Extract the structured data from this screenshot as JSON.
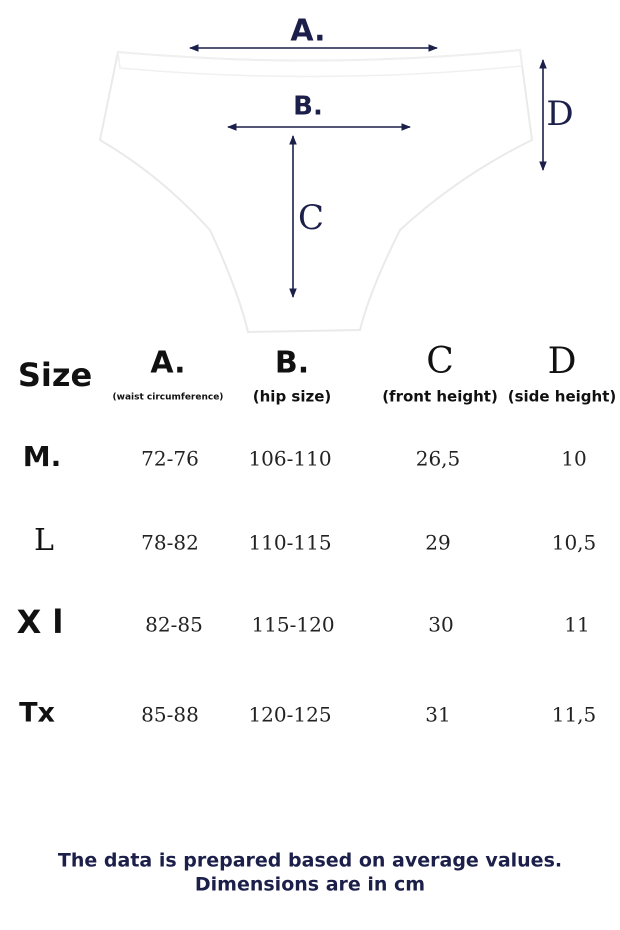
{
  "diagram": {
    "labels": {
      "a": "A.",
      "b": "B.",
      "c": "C",
      "d": "D"
    }
  },
  "table": {
    "header": {
      "size": "Size",
      "columns": [
        {
          "letter": "A.",
          "caption": "(waist circumference)"
        },
        {
          "letter": "B.",
          "caption": "(hip size)"
        },
        {
          "letter": "C",
          "caption": "(front height)"
        },
        {
          "letter": "D",
          "caption": "(side height)"
        }
      ]
    },
    "rows": [
      [
        "M.",
        "72-76",
        "106-110",
        "26,5",
        "10"
      ],
      [
        "L",
        "78-82",
        "110-115",
        "29",
        "10,5"
      ],
      [
        "X l",
        "82-85",
        "115-120",
        "30",
        "11"
      ],
      [
        "Tx",
        "85-88",
        "120-125",
        "31",
        "11,5"
      ]
    ]
  },
  "footer": {
    "lines": [
      "The data is prepared based on average values.",
      "Dimensions are in cm"
    ]
  }
}
